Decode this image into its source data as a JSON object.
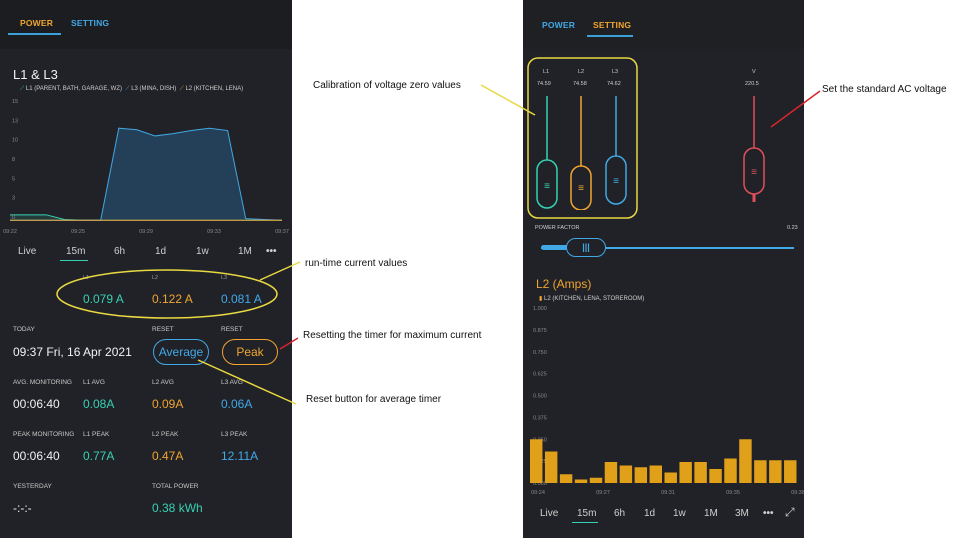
{
  "left": {
    "tabs": [
      {
        "label": "POWER"
      },
      {
        "label": "SETTING"
      }
    ],
    "chart": {
      "title": "L1 & L3",
      "legend": [
        {
          "label": "L1 (PARENT, BATH, GARAGE, WZ)",
          "color": "#36d1b3"
        },
        {
          "label": "L3 (MINA, DISH)",
          "color": "#41a8e6"
        },
        {
          "label": "L2 (KITCHEN, LENA)",
          "color": "#f0a530"
        }
      ],
      "yticks": [
        "15",
        "13",
        "10",
        "8",
        "5",
        "3",
        "0"
      ],
      "xticks": [
        "09:22",
        "09:25",
        "09:29",
        "09:33",
        "09:37"
      ]
    },
    "periods": [
      "Live",
      "15m",
      "6h",
      "1d",
      "1w",
      "1M",
      "•••"
    ],
    "current": [
      {
        "label": "L1",
        "value": "0.079 A"
      },
      {
        "label": "L2",
        "value": "0.122 A"
      },
      {
        "label": "L3",
        "value": "0.081 A"
      }
    ],
    "today_label": "TODAY",
    "today_value": "09:37 Fri, 16 Apr 2021",
    "reset_label": "RESET",
    "average_button": "Average",
    "peak_button": "Peak",
    "avg_row": {
      "label": "AVG. MONITORING",
      "time": "00:06:40",
      "items": [
        {
          "label": "L1 AVG",
          "value": "0.08A"
        },
        {
          "label": "L2 AVG",
          "value": "0.09A"
        },
        {
          "label": "L3 AVG",
          "value": "0.06A"
        }
      ]
    },
    "peak_row": {
      "label": "PEAK MONITORING",
      "time": "00:06:40",
      "items": [
        {
          "label": "L1 PEAK",
          "value": "0.77A"
        },
        {
          "label": "L2 PEAK",
          "value": "0.47A"
        },
        {
          "label": "L3 PEAK",
          "value": "12.11A"
        }
      ]
    },
    "yesterday_label": "YESTERDAY",
    "yesterday_value": "-:-:-",
    "total_power_label": "TOTAL POWER",
    "total_power_value": "0.38 kWh"
  },
  "right": {
    "tabs": [
      {
        "label": "POWER"
      },
      {
        "label": "SETTING"
      }
    ],
    "sliders": [
      {
        "label": "L1",
        "value": "74.59",
        "color": "#36d1b3"
      },
      {
        "label": "L2",
        "value": "74.58",
        "color": "#f0a530"
      },
      {
        "label": "L3",
        "value": "74.62",
        "color": "#41a8e6"
      },
      {
        "label": "V",
        "value": "220.5",
        "color": "#e0505a"
      }
    ],
    "power_factor_label": "POWER FACTOR",
    "power_factor_value": "0.23",
    "chart": {
      "title": "L2 (Amps)",
      "legend": "L2 (KITCHEN, LENA, STOREROOM)",
      "yticks": [
        "1.000",
        "0.875",
        "0.750",
        "0.625",
        "0.500",
        "0.375",
        "0.250",
        "0.125",
        "0.000"
      ],
      "xticks": [
        "09:24",
        "09:27",
        "09:31",
        "09:35",
        "09:38"
      ]
    },
    "periods": [
      "Live",
      "15m",
      "6h",
      "1d",
      "1w",
      "1M",
      "3M",
      "•••"
    ]
  },
  "annotations": {
    "calibration": "Calibration of voltage zero values",
    "standard_voltage": "Set the standard AC voltage",
    "runtime": "run-time current values",
    "reset_peak": "Resetting the timer for maximum current",
    "reset_avg": "Reset button for average timer"
  },
  "chart_data": [
    {
      "type": "line",
      "title": "L1 & L3",
      "x": [
        "09:22",
        "09:23",
        "09:24",
        "09:25",
        "09:26",
        "09:27",
        "09:28",
        "09:29",
        "09:30",
        "09:31",
        "09:32",
        "09:33",
        "09:34",
        "09:35",
        "09:36",
        "09:37"
      ],
      "series": [
        {
          "name": "L1 (PARENT, BATH, GARAGE, WZ)",
          "values": [
            0.8,
            0.8,
            0.8,
            0.2,
            0.1,
            0.1,
            0.1,
            0.1,
            0.1,
            0.1,
            0.1,
            0.1,
            0.1,
            0.1,
            0.1,
            0.1
          ]
        },
        {
          "name": "L3 (MINA, DISH)",
          "values": [
            0.1,
            0.1,
            0.1,
            0.1,
            0.1,
            0.1,
            12.0,
            11.8,
            11.0,
            11.3,
            11.7,
            12.0,
            11.7,
            0.3,
            0.2,
            0.1
          ]
        },
        {
          "name": "L2 (KITCHEN, LENA)",
          "values": [
            0.1,
            0.1,
            0.1,
            0.1,
            0.1,
            0.1,
            0.1,
            0.1,
            0.1,
            0.1,
            0.1,
            0.1,
            0.1,
            0.1,
            0.1,
            0.1
          ]
        }
      ],
      "ylim": [
        0,
        15
      ]
    },
    {
      "type": "bar",
      "title": "L2 (Amps)",
      "series": [
        {
          "name": "L2 (KITCHEN, LENA, STOREROOM)",
          "values": [
            0.25,
            0.18,
            0.05,
            0.02,
            0.03,
            0.12,
            0.1,
            0.09,
            0.1,
            0.06,
            0.12,
            0.12,
            0.08,
            0.14,
            0.25,
            0.13,
            0.13,
            0.13
          ]
        }
      ],
      "ylim": [
        0,
        1
      ]
    }
  ]
}
